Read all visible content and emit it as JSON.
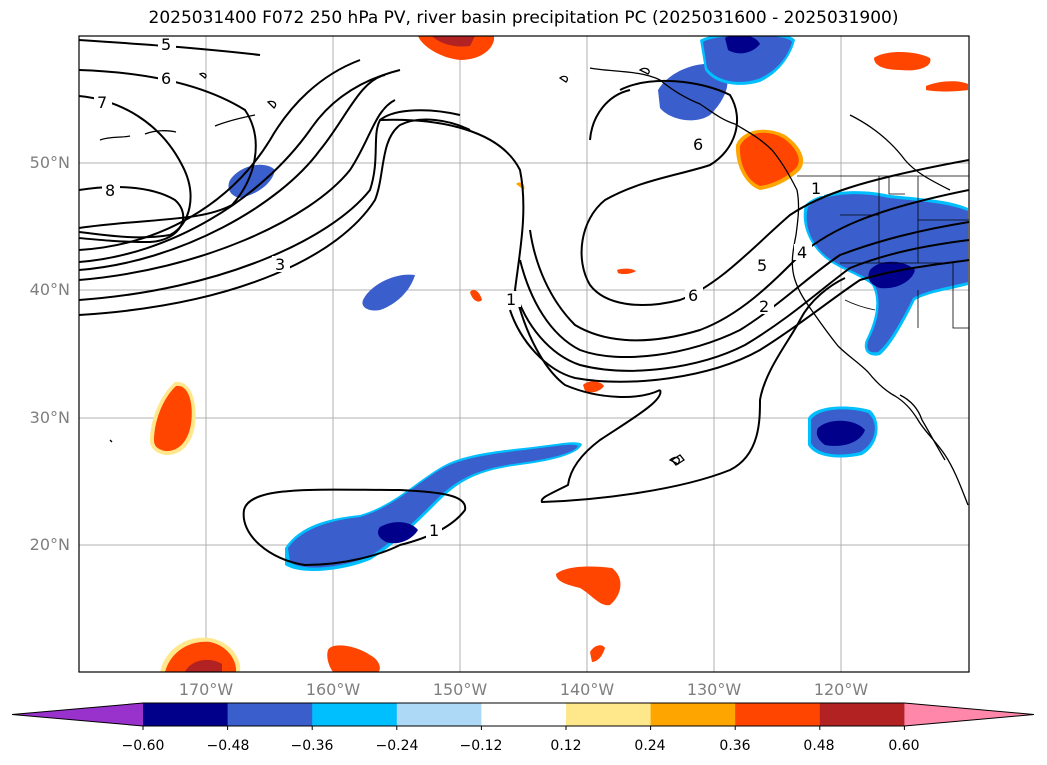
{
  "title": "2025031400 F072 250 hPa PV, river basin precipitation PC (2025031600 - 2025031900)",
  "lat_labels": [
    "50°N",
    "40°N",
    "30°N",
    "20°N"
  ],
  "lon_labels": [
    "170°W",
    "160°W",
    "150°W",
    "140°W",
    "130°W",
    "120°W"
  ],
  "contour_labels": [
    "5",
    "6",
    "7",
    "8",
    "3",
    "1",
    "6",
    "5",
    "4",
    "6",
    "2",
    "1",
    "1"
  ],
  "colorbar": {
    "ticks": [
      "−0.60",
      "−0.48",
      "−0.36",
      "−0.24",
      "−0.12",
      "0.12",
      "0.24",
      "0.36",
      "0.48",
      "0.60"
    ],
    "colors": [
      "#9932cc",
      "#00008b",
      "#3a5fcd",
      "#00bfff",
      "#add8f6",
      "#ffffff",
      "#ffe88c",
      "#ffa500",
      "#ff4500",
      "#b22222",
      "#ff88aa"
    ]
  }
}
